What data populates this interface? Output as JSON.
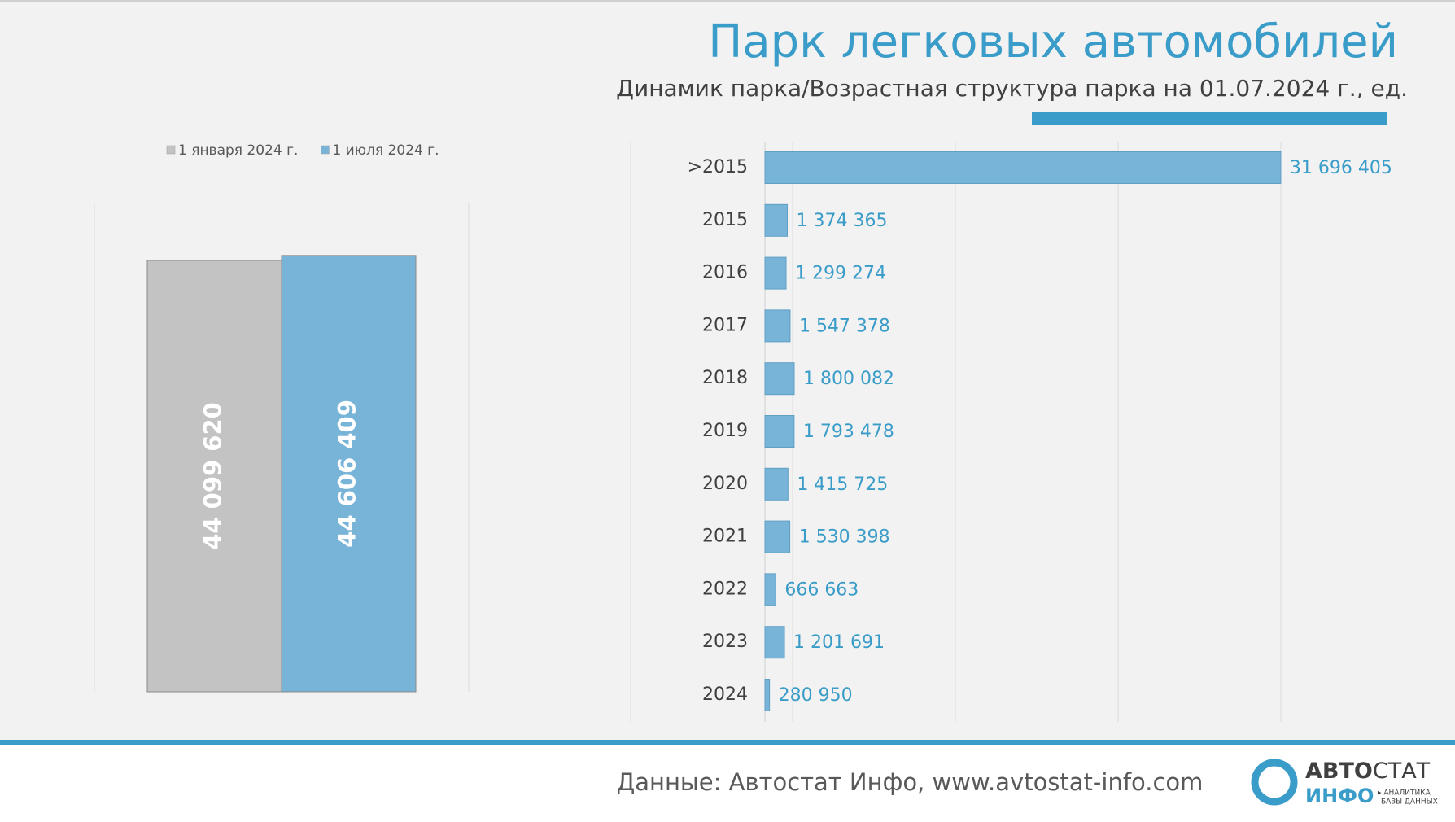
{
  "chart_data": [
    {
      "type": "bar",
      "series": [
        {
          "name": "1 января 2024 г.",
          "color": "#c3c3c3",
          "values": [
            44099620
          ],
          "value_labels": [
            "44 099 620"
          ]
        },
        {
          "name": "1 июля 2024 г.",
          "color": "#78b4d8",
          "values": [
            44606409
          ],
          "value_labels": [
            "44 606 409"
          ]
        }
      ],
      "ylim": [
        0,
        50000000
      ]
    },
    {
      "type": "hbar",
      "title": "Парк легковых автомобилей",
      "subtitle": "Динамик парка/Возрастная структура парка на 01.07.2024 г., ед.",
      "categories": [
        ">2015",
        "2015",
        "2016",
        "2017",
        "2018",
        "2019",
        "2020",
        "2021",
        "2022",
        "2023",
        "2024"
      ],
      "values": [
        31696405,
        1374365,
        1299274,
        1547378,
        1800082,
        1793478,
        1415725,
        1530398,
        666663,
        1201691,
        280950
      ],
      "value_labels": [
        "31 696 405",
        "1 374 365",
        "1 299 274",
        "1 547 378",
        "1 800 082",
        "1 793 478",
        "1 415 725",
        "1 530 398",
        "666 663",
        "1 201 691",
        "280 950"
      ],
      "color": "#78b4d8",
      "xlim": [
        0,
        40000000
      ]
    }
  ],
  "footer": {
    "source": "Данные: Автостат Инфо, www.avtostat-info.com"
  },
  "logo": {
    "brand_bold": "АВТО",
    "brand": "СТАТ",
    "sub": "ИНФО",
    "tag1": "▸ АНАЛИТИКА",
    "tag2": "БАЗЫ ДАННЫХ"
  }
}
